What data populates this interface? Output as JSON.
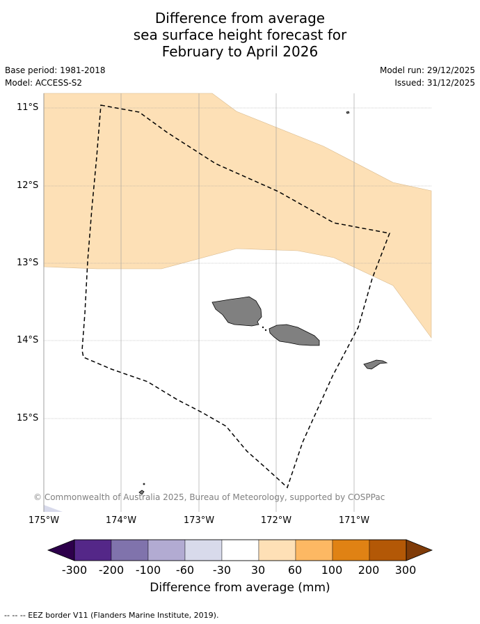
{
  "title": {
    "line1": "Difference from average",
    "line2": "sea surface height forecast for",
    "line3": "February to April 2026"
  },
  "meta": {
    "base_period": "Base period: 1981-2018",
    "model": "Model: ACCESS-S2",
    "model_run": "Model run: 29/12/2025",
    "issued": "Issued: 31/12/2025"
  },
  "map": {
    "lat_labels": [
      "11°S",
      "12°S",
      "13°S",
      "14°S",
      "15°S"
    ],
    "lon_labels": [
      "175°W",
      "174°W",
      "173°W",
      "172°W",
      "171°W"
    ],
    "copyright": "© Commonwealth of Australia 2025, Bureau of Meteorology, supported by COSPPac",
    "colors": {
      "anomaly_30_60": "#fde0b6",
      "land": "#808080",
      "grid": "#999999"
    }
  },
  "colorbar": {
    "label": "Difference from average (mm)",
    "ticks": [
      "-300",
      "-200",
      "-100",
      "-60",
      "-30",
      "30",
      "60",
      "100",
      "200",
      "300"
    ],
    "colors": [
      "#2d004b",
      "#542788",
      "#8073ac",
      "#b2abd2",
      "#d8daeb",
      "#ffffff",
      "#fee0b6",
      "#fdb863",
      "#e08214",
      "#b35806",
      "#7f3b08"
    ]
  },
  "footnote": "--  --  -- EEZ border V11 (Flanders Marine Institute, 2019)."
}
